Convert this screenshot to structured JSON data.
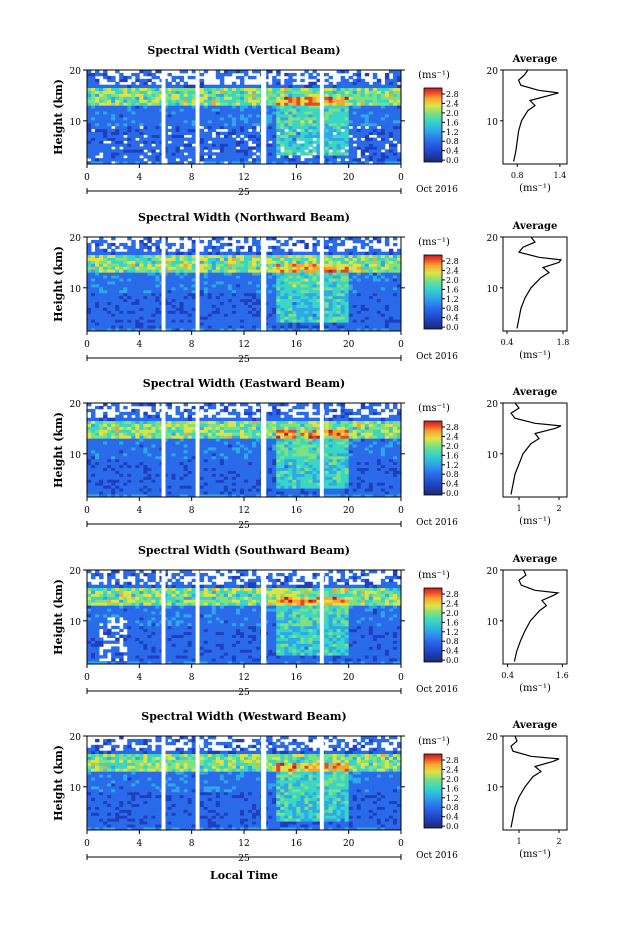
{
  "x_axis_title": "Local Time",
  "time_ticks": [
    "0",
    "4",
    "8",
    "12",
    "16",
    "20",
    "0"
  ],
  "date_day": "25",
  "date_label": "Oct 2016",
  "height_label": "Height (km)",
  "height_ticks": [
    "20",
    "10"
  ],
  "colorbar_unit": "(ms⁻¹)",
  "colorbar_ticks": [
    "2.8",
    "2.4",
    "2.0",
    "1.6",
    "1.2",
    "0.8",
    "0.4",
    "0.0"
  ],
  "colors": {
    "scale": [
      "#1e2a6e",
      "#1f3fbf",
      "#2a6bea",
      "#2fa8e8",
      "#39d6c6",
      "#7ee07f",
      "#e0e244",
      "#f6a530",
      "#e9452a",
      "#c41f1f"
    ],
    "gap": "#ffffff",
    "axes": "#000000"
  },
  "panels": [
    {
      "title": "Spectral Width (Vertical Beam)",
      "avg_title": "Average",
      "avg_xticks": [
        "0.8",
        "1.4"
      ],
      "avg_unit": "(ms⁻¹)"
    },
    {
      "title": "Spectral Width (Northward Beam)",
      "avg_title": "Average",
      "avg_xticks": [
        "0.4",
        "1.8"
      ],
      "avg_unit": "(ms⁻¹)"
    },
    {
      "title": "Spectral Width (Eastward Beam)",
      "avg_title": "Average",
      "avg_xticks": [
        "1",
        "2"
      ],
      "avg_unit": "(ms⁻¹)"
    },
    {
      "title": "Spectral Width (Southward Beam)",
      "avg_title": "Average",
      "avg_xticks": [
        "0.4",
        "1.6"
      ],
      "avg_unit": "(ms⁻¹)"
    },
    {
      "title": "Spectral Width (Westward Beam)",
      "avg_title": "Average",
      "avg_xticks": [
        "1",
        "2"
      ],
      "avg_unit": "(ms⁻¹)"
    }
  ],
  "chart_data": {
    "type": "heatmap",
    "x_axis": {
      "label": "Local Time",
      "range_hours": [
        0,
        24
      ],
      "ticks": [
        0,
        4,
        8,
        12,
        16,
        20,
        24
      ]
    },
    "y_axis": {
      "label": "Height (km)",
      "range_km": [
        1.5,
        20
      ],
      "ticks": [
        10,
        20
      ]
    },
    "colorbar": {
      "unit": "ms^-1",
      "range": [
        0.0,
        3.0
      ],
      "ticks": [
        0.0,
        0.4,
        0.8,
        1.2,
        1.6,
        2.0,
        2.4,
        2.8
      ]
    },
    "data_gaps_hours": [
      [
        5.7,
        6.0
      ],
      [
        8.3,
        8.6
      ],
      [
        13.3,
        13.7
      ],
      [
        17.8,
        18.1
      ]
    ],
    "average_profiles": [
      {
        "beam": "Vertical",
        "height_km": [
          2,
          4,
          6,
          8,
          10,
          12,
          13,
          14,
          15,
          15.5,
          16,
          17,
          18,
          19,
          20
        ],
        "width_ms": [
          0.75,
          0.78,
          0.8,
          0.82,
          0.86,
          0.95,
          1.05,
          0.98,
          1.25,
          1.38,
          1.1,
          0.85,
          0.82,
          0.9,
          0.95
        ]
      },
      {
        "beam": "Northward",
        "height_km": [
          2,
          4,
          6,
          8,
          10,
          12,
          13,
          14,
          15,
          15.5,
          16,
          17,
          18,
          19,
          20
        ],
        "width_ms": [
          0.65,
          0.7,
          0.75,
          0.85,
          1.0,
          1.25,
          1.45,
          1.3,
          1.7,
          1.75,
          1.2,
          0.7,
          0.8,
          1.1,
          1.0
        ]
      },
      {
        "beam": "Eastward",
        "height_km": [
          2,
          4,
          6,
          8,
          10,
          12,
          13,
          14,
          15,
          15.5,
          16,
          17,
          18,
          19,
          20
        ],
        "width_ms": [
          0.8,
          0.85,
          0.9,
          1.0,
          1.1,
          1.3,
          1.5,
          1.4,
          1.9,
          2.05,
          1.4,
          0.9,
          0.8,
          1.0,
          0.9
        ]
      },
      {
        "beam": "Southward",
        "height_km": [
          2,
          4,
          6,
          8,
          10,
          12,
          13,
          14,
          15,
          15.5,
          16,
          17,
          18,
          19,
          20
        ],
        "width_ms": [
          0.55,
          0.6,
          0.68,
          0.78,
          0.9,
          1.1,
          1.25,
          1.15,
          1.4,
          1.5,
          1.0,
          0.7,
          0.65,
          0.8,
          0.75
        ]
      },
      {
        "beam": "Westward",
        "height_km": [
          2,
          4,
          6,
          8,
          10,
          12,
          13,
          14,
          15,
          15.5,
          16,
          17,
          18,
          19,
          20
        ],
        "width_ms": [
          0.8,
          0.85,
          0.9,
          1.0,
          1.15,
          1.35,
          1.55,
          1.4,
          1.85,
          2.0,
          1.3,
          0.85,
          0.8,
          0.95,
          0.9
        ]
      }
    ]
  }
}
